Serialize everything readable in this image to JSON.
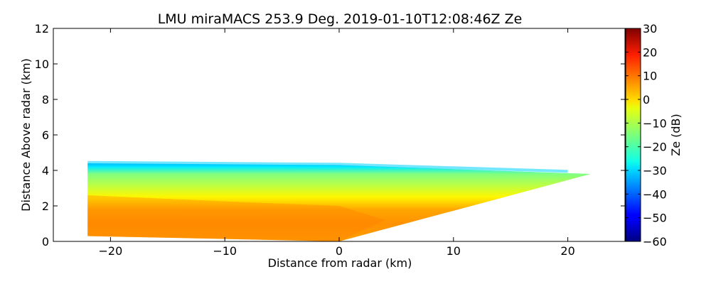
{
  "chart_data": {
    "type": "heatmap",
    "title": "LMU miraMACS 253.9 Deg. 2019-01-10T12:08:46Z  Ze",
    "xlabel": "Distance from radar (km)",
    "ylabel": "Distance Above radar  (km)",
    "xlim": [
      -25,
      25
    ],
    "ylim": [
      0,
      12
    ],
    "xticks": [
      -20,
      -10,
      0,
      10,
      20
    ],
    "xtick_labels": [
      "−20",
      "−10",
      "0",
      "10",
      "20"
    ],
    "yticks": [
      0,
      2,
      4,
      6,
      8,
      10,
      12
    ],
    "ytick_labels": [
      "0",
      "2",
      "4",
      "6",
      "8",
      "10",
      "12"
    ],
    "grid": false,
    "colorbar": {
      "label": "Ze (dB)",
      "colormap": "jet",
      "range": [
        -60,
        30
      ],
      "ticks": [
        30,
        20,
        10,
        0,
        -10,
        -20,
        -30,
        -40,
        -50,
        -60
      ],
      "tick_labels": [
        "30",
        "20",
        "10",
        "0",
        "−10",
        "−20",
        "−30",
        "−40",
        "−50",
        "−60"
      ]
    },
    "scan": {
      "radar_position_km": [
        0,
        0
      ],
      "left_edge_x_km": -22,
      "left_edge_top_km": 4.4,
      "left_edge_bottom_km": 0.3,
      "right_tip_x_km": 22,
      "right_tip_height_km": 3.8,
      "echo_top_km": 4.3,
      "ze_profile": [
        {
          "height_km": 0.2,
          "ze_db": 5
        },
        {
          "height_km": 1.0,
          "ze_db": 6
        },
        {
          "height_km": 1.8,
          "ze_db": 4
        },
        {
          "height_km": 2.5,
          "ze_db": -3
        },
        {
          "height_km": 3.2,
          "ze_db": -10
        },
        {
          "height_km": 3.8,
          "ze_db": -15
        },
        {
          "height_km": 4.2,
          "ze_db": -28
        },
        {
          "height_km": 4.5,
          "ze_db": -35
        }
      ]
    }
  }
}
